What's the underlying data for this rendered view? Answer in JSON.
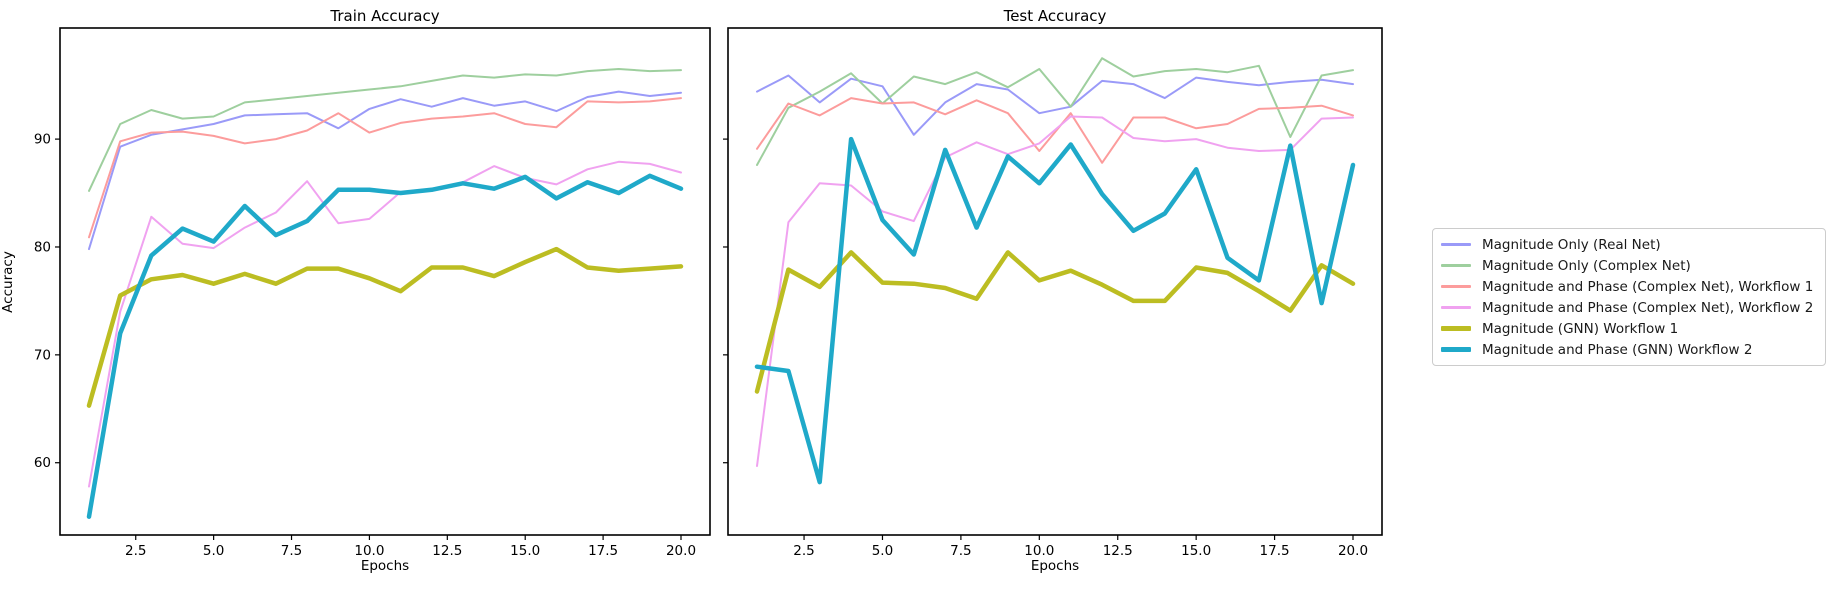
{
  "figure": {
    "background": "#ffffff"
  },
  "colors": {
    "magnitude_only_real": "#9a9af8",
    "magnitude_only_complex": "#9ecf9e",
    "mag_phase_complex_w1": "#fc9c9c",
    "mag_phase_complex_w2": "#f0a2f0",
    "magnitude_gnn_w1": "#bcbd22",
    "mag_phase_gnn_w2": "#1fa9c9",
    "axis": "#000000",
    "legend_border": "#cccccc"
  },
  "legend": {
    "entries": [
      {
        "label": "Magnitude Only (Real Net)",
        "color": "#9a9af8",
        "thick": false
      },
      {
        "label": "Magnitude Only (Complex Net)",
        "color": "#9ecf9e",
        "thick": false
      },
      {
        "label": "Magnitude and Phase (Complex Net), Workflow 1",
        "color": "#fc9c9c",
        "thick": false
      },
      {
        "label": "Magnitude and Phase (Complex Net), Workflow 2",
        "color": "#f0a2f0",
        "thick": false
      },
      {
        "label": "Magnitude (GNN) Workflow 1",
        "color": "#bcbd22",
        "thick": true
      },
      {
        "label": "Magnitude and Phase (GNN) Workflow 2",
        "color": "#1fa9c9",
        "thick": true
      }
    ]
  },
  "chart_data": [
    {
      "type": "line",
      "title": "Train Accuracy",
      "xlabel": "Epochs",
      "ylabel": "Accuracy",
      "x": [
        1,
        2,
        3,
        4,
        5,
        6,
        7,
        8,
        9,
        10,
        11,
        12,
        13,
        14,
        15,
        16,
        17,
        18,
        19,
        20
      ],
      "xticks": [
        2.5,
        5.0,
        7.5,
        10.0,
        12.5,
        15.0,
        17.5,
        20.0
      ],
      "xtick_labels": [
        "2.5",
        "5.0",
        "7.5",
        "10.0",
        "12.5",
        "15.0",
        "17.5",
        "20.0"
      ],
      "yticks": [
        60,
        70,
        80,
        90
      ],
      "ytick_labels": [
        "60",
        "70",
        "80",
        "90"
      ],
      "show_ytick_labels": true,
      "ylim": [
        53.3,
        100.3
      ],
      "xlim": [
        0.05,
        20.95
      ],
      "grid": false,
      "series": [
        {
          "name": "Magnitude Only (Real Net)",
          "color": "#9a9af8",
          "width": 2,
          "values": [
            79.8,
            89.3,
            90.4,
            90.9,
            91.4,
            92.2,
            92.3,
            92.4,
            91.0,
            92.8,
            93.7,
            93.0,
            93.8,
            93.1,
            93.5,
            92.6,
            93.9,
            94.4,
            94.0,
            94.3
          ]
        },
        {
          "name": "Magnitude Only (Complex Net)",
          "color": "#9ecf9e",
          "width": 2,
          "values": [
            85.2,
            91.4,
            92.7,
            91.9,
            92.1,
            93.4,
            93.7,
            94.0,
            94.3,
            94.6,
            94.9,
            95.4,
            95.9,
            95.7,
            96.0,
            95.9,
            96.3,
            96.5,
            96.3,
            96.4
          ]
        },
        {
          "name": "Magnitude and Phase (Complex Net), Workflow 1",
          "color": "#fc9c9c",
          "width": 2,
          "values": [
            80.9,
            89.8,
            90.6,
            90.7,
            90.3,
            89.6,
            90.0,
            90.8,
            92.4,
            90.6,
            91.5,
            91.9,
            92.1,
            92.4,
            91.4,
            91.1,
            93.5,
            93.4,
            93.5,
            93.8
          ]
        },
        {
          "name": "Magnitude and Phase (Complex Net), Workflow 2",
          "color": "#f0a2f0",
          "width": 2,
          "values": [
            57.8,
            74.0,
            82.8,
            80.3,
            79.9,
            81.8,
            83.2,
            86.1,
            82.2,
            82.6,
            85.1,
            85.2,
            86.0,
            87.5,
            86.4,
            85.8,
            87.2,
            87.9,
            87.7,
            86.9
          ]
        },
        {
          "name": "Magnitude (GNN) Workflow 1",
          "color": "#bcbd22",
          "width": 4.5,
          "values": [
            65.3,
            75.5,
            77.0,
            77.4,
            76.6,
            77.5,
            76.6,
            78.0,
            78.0,
            77.1,
            75.9,
            78.1,
            78.1,
            77.3,
            78.6,
            79.8,
            78.1,
            77.8,
            78.0,
            78.2
          ]
        },
        {
          "name": "Magnitude and Phase (GNN) Workflow 2",
          "color": "#1fa9c9",
          "width": 4.5,
          "values": [
            55.0,
            72.0,
            79.2,
            81.7,
            80.5,
            83.8,
            81.1,
            82.4,
            85.3,
            85.3,
            85.0,
            85.3,
            85.9,
            85.4,
            86.5,
            84.5,
            86.0,
            85.0,
            86.6,
            85.4
          ]
        }
      ]
    },
    {
      "type": "line",
      "title": "Test Accuracy",
      "xlabel": "Epochs",
      "ylabel": "",
      "x": [
        1,
        2,
        3,
        4,
        5,
        6,
        7,
        8,
        9,
        10,
        11,
        12,
        13,
        14,
        15,
        16,
        17,
        18,
        19,
        20
      ],
      "xticks": [
        2.5,
        5.0,
        7.5,
        10.0,
        12.5,
        15.0,
        17.5,
        20.0
      ],
      "xtick_labels": [
        "2.5",
        "5.0",
        "7.5",
        "10.0",
        "12.5",
        "15.0",
        "17.5",
        "20.0"
      ],
      "yticks": [
        60,
        70,
        80,
        90
      ],
      "ytick_labels": [
        "60",
        "70",
        "80",
        "90"
      ],
      "show_ytick_labels": false,
      "ylim": [
        53.3,
        100.3
      ],
      "xlim": [
        0.05,
        20.95
      ],
      "grid": false,
      "series": [
        {
          "name": "Magnitude Only (Real Net)",
          "color": "#9a9af8",
          "width": 2,
          "values": [
            94.4,
            95.9,
            93.4,
            95.6,
            94.9,
            90.4,
            93.4,
            95.1,
            94.6,
            92.4,
            93.0,
            95.4,
            95.1,
            93.8,
            95.7,
            95.3,
            95.0,
            95.3,
            95.5,
            95.1
          ]
        },
        {
          "name": "Magnitude Only (Complex Net)",
          "color": "#9ecf9e",
          "width": 2,
          "values": [
            87.6,
            92.9,
            94.4,
            96.1,
            93.3,
            95.8,
            95.1,
            96.2,
            94.8,
            96.5,
            93.0,
            97.5,
            95.8,
            96.3,
            96.5,
            96.2,
            96.8,
            90.2,
            95.9,
            96.4
          ]
        },
        {
          "name": "Magnitude and Phase (Complex Net), Workflow 1",
          "color": "#fc9c9c",
          "width": 2,
          "values": [
            89.1,
            93.3,
            92.2,
            93.8,
            93.3,
            93.4,
            92.3,
            93.6,
            92.4,
            88.9,
            92.4,
            87.8,
            92.0,
            92.0,
            91.0,
            91.4,
            92.8,
            92.9,
            93.1,
            92.2
          ]
        },
        {
          "name": "Magnitude and Phase (Complex Net), Workflow 2",
          "color": "#f0a2f0",
          "width": 2,
          "values": [
            59.7,
            82.3,
            85.9,
            85.7,
            83.3,
            82.4,
            88.3,
            89.7,
            88.6,
            89.6,
            92.1,
            92.0,
            90.1,
            89.8,
            90.0,
            89.2,
            88.9,
            89.0,
            91.9,
            92.0
          ]
        },
        {
          "name": "Magnitude (GNN) Workflow 1",
          "color": "#bcbd22",
          "width": 4.5,
          "values": [
            66.6,
            77.9,
            76.3,
            79.5,
            76.7,
            76.6,
            76.2,
            75.2,
            79.5,
            76.9,
            77.8,
            76.5,
            75.0,
            75.0,
            78.1,
            77.6,
            75.9,
            74.1,
            78.3,
            76.6
          ]
        },
        {
          "name": "Magnitude and Phase (GNN) Workflow 2",
          "color": "#1fa9c9",
          "width": 4.5,
          "values": [
            68.9,
            68.5,
            58.2,
            90.0,
            82.5,
            79.3,
            89.0,
            81.8,
            88.4,
            85.9,
            89.5,
            84.9,
            81.5,
            83.1,
            87.2,
            79.0,
            76.9,
            89.4,
            74.8,
            87.6
          ]
        }
      ]
    }
  ]
}
